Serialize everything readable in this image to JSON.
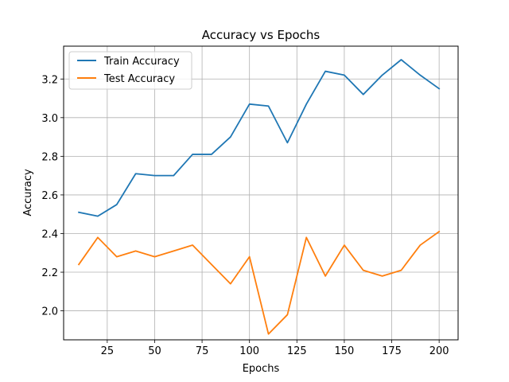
{
  "chart_data": {
    "type": "line",
    "title": "Accuracy vs Epochs",
    "xlabel": "Epochs",
    "ylabel": "Accuracy",
    "xlim": [
      2,
      210
    ],
    "ylim": [
      1.85,
      3.37
    ],
    "xticks": [
      25,
      50,
      75,
      100,
      125,
      150,
      175,
      200
    ],
    "yticks": [
      2.0,
      2.2,
      2.4,
      2.6,
      2.8,
      3.0,
      3.2
    ],
    "grid": true,
    "legend_position": "top-left",
    "x": [
      10,
      20,
      30,
      40,
      50,
      60,
      70,
      80,
      90,
      100,
      110,
      120,
      130,
      140,
      150,
      160,
      170,
      180,
      190,
      200
    ],
    "series": [
      {
        "name": "Train Accuracy",
        "color": "#1f77b4",
        "values": [
          2.51,
          2.49,
          2.55,
          2.71,
          2.7,
          2.7,
          2.81,
          2.81,
          2.9,
          3.07,
          3.06,
          2.87,
          3.07,
          3.24,
          3.22,
          3.12,
          3.22,
          3.3,
          3.22,
          3.15
        ]
      },
      {
        "name": "Test Accuracy",
        "color": "#ff7f0e",
        "values": [
          2.24,
          2.38,
          2.28,
          2.31,
          2.28,
          2.31,
          2.34,
          2.24,
          2.14,
          2.28,
          1.88,
          1.98,
          2.38,
          2.18,
          2.34,
          2.21,
          2.18,
          2.21,
          2.34,
          2.41
        ]
      }
    ]
  }
}
